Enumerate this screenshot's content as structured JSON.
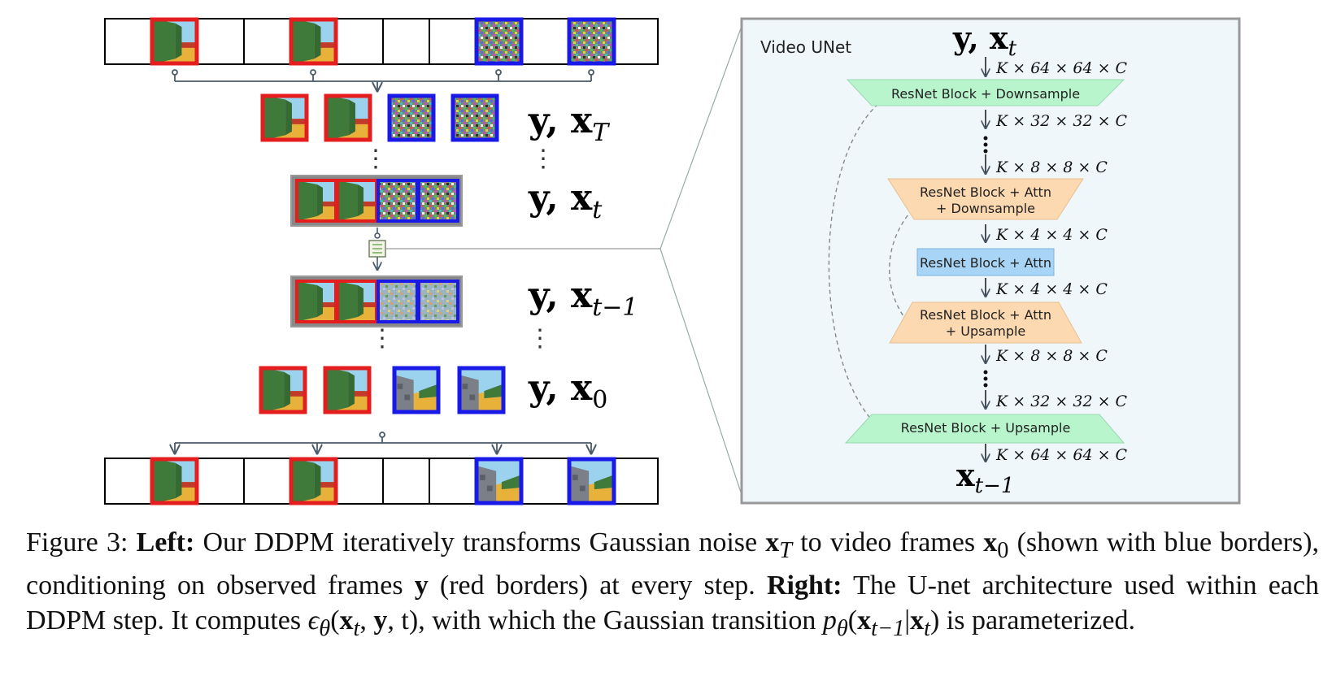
{
  "figure": {
    "left": {
      "labels": {
        "xT": {
          "base": "y, x",
          "sub": "T"
        },
        "xt": {
          "base": "y, x",
          "sub": "t"
        },
        "xtm1": {
          "base": "y, x",
          "sub": "t−1"
        },
        "x0": {
          "base": "y, x",
          "sub": "0"
        },
        "dots": "⋮"
      }
    },
    "right": {
      "title": "Video UNet",
      "input": {
        "base": "y, x",
        "sub": "t"
      },
      "output": {
        "base": "x",
        "sub": "t−1"
      },
      "blocks": {
        "b1": "ResNet Block + Downsample",
        "b2_line1": "ResNet Block + Attn",
        "b2_line2": "+ Downsample",
        "b3": "ResNet Block + Attn",
        "b4_line1": "ResNet Block + Attn",
        "b4_line2": "+ Upsample",
        "b5": "ResNet Block + Upsample"
      },
      "dims": {
        "d1": "K × 64 × 64 × C",
        "d2": "K × 32 × 32 × C",
        "d3": "K × 8 × 8 × C",
        "d4": "K × 4 × 4 × C",
        "d5": "K × 4 × 4 × C",
        "d6": "K × 8 × 8 × C",
        "d7": "K × 32 × 32 × C",
        "d8": "K × 64 × 64 × C"
      }
    },
    "colors": {
      "observed": "#e41e1e",
      "generated": "#1a1ae8",
      "down_block": "#b8f5cc",
      "attn_block": "#fcd9b0",
      "mid_block": "#a8d4f5",
      "panel_bg": "#f0f7fb"
    }
  },
  "caption": {
    "p1": "Figure 3: ",
    "p2": "Left:",
    "p3": " Our DDPM iteratively transforms Gaussian noise ",
    "m1": "x",
    "m1sub": "T",
    "p4": " to video frames ",
    "m2": "x",
    "m2sub": "0",
    "p5": " (shown with blue borders), conditioning on observed frames ",
    "m3": "y",
    "p6": " (red borders) at every step. ",
    "p7": "Right:",
    "p8": " The U-net architecture used within each DDPM step. It computes ",
    "m4": "ϵ",
    "m4sub": "θ",
    "p9": "(",
    "m5": "x",
    "m5sub": "t",
    "p10": ", ",
    "m6": "y",
    "p11": ", t), with which the Gaussian transition ",
    "m7": "p",
    "m7sub": "θ",
    "p12": "(",
    "m8": "x",
    "m8sub": "t−1",
    "p13": "|",
    "m9": "x",
    "m9sub": "t",
    "p14": ") is parameterized."
  }
}
